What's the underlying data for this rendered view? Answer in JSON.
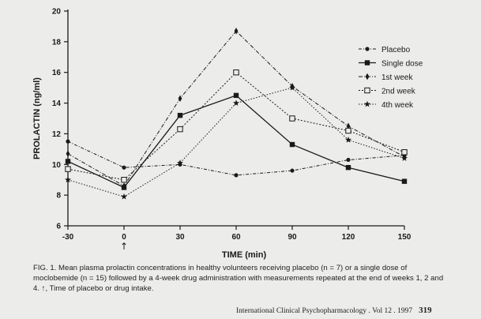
{
  "chart_data": {
    "type": "line",
    "xlabel": "TIME (min)",
    "ylabel": "PROLACTIN (ng/ml)",
    "x": [
      -30,
      0,
      30,
      60,
      90,
      120,
      150
    ],
    "xtick_labels": [
      "-30",
      "0",
      "30",
      "60",
      "90",
      "120",
      "150"
    ],
    "yticks": [
      6,
      8,
      10,
      12,
      14,
      16,
      18,
      20
    ],
    "ylim": [
      6,
      20
    ],
    "grid": false,
    "legend_position": "right",
    "marker_note": "↑",
    "series": [
      {
        "name": "Placebo",
        "marker": "dot",
        "dash": "4 2 1 2",
        "values": [
          11.5,
          9.8,
          10.0,
          9.3,
          9.6,
          10.3,
          10.6
        ]
      },
      {
        "name": "Single dose",
        "marker": "square",
        "dash": "",
        "values": [
          10.2,
          8.5,
          13.2,
          14.5,
          11.3,
          9.8,
          8.9
        ]
      },
      {
        "name": "1st week",
        "marker": "diamond",
        "dash": "5 2 1 2",
        "values": [
          10.7,
          8.6,
          14.3,
          18.7,
          15.1,
          12.5,
          10.5
        ]
      },
      {
        "name": "2nd week",
        "marker": "open-square",
        "dash": "2 2",
        "values": [
          9.7,
          9.0,
          12.3,
          16.0,
          13.0,
          12.2,
          10.8
        ]
      },
      {
        "name": "4th week",
        "marker": "star",
        "dash": "1.5 2",
        "values": [
          9.0,
          7.9,
          10.1,
          14.0,
          15.0,
          11.6,
          10.4
        ]
      }
    ]
  },
  "caption": "FIG. 1. Mean plasma prolactin concentrations in healthy volunteers receiving placebo (n = 7) or a single dose of moclobemide (n = 15) followed by a 4-week drug administration with measurements repeated at the end of weeks 1, 2 and 4. ↑, Time of placebo or drug intake.",
  "footer": {
    "journal": "International Clinical Psychopharmacology . Vol 12 . 1997",
    "page": "319"
  }
}
